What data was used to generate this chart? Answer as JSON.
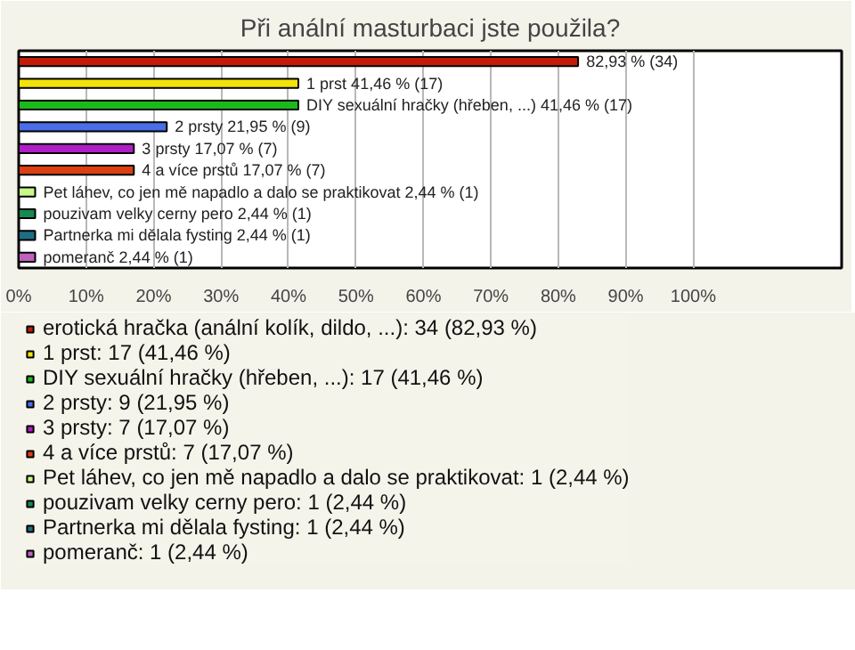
{
  "chart_data": {
    "type": "bar",
    "orientation": "horizontal",
    "title": "Při anální masturbaci jste použila?",
    "categories": [
      null,
      null,
      null,
      null,
      null,
      null,
      null,
      null,
      null,
      null
    ],
    "xlim": [
      0,
      122
    ],
    "xticks": [
      {
        "value": 0,
        "label": "0%"
      },
      {
        "value": 10,
        "label": "10%"
      },
      {
        "value": 20,
        "label": "20%"
      },
      {
        "value": 30,
        "label": "30%"
      },
      {
        "value": 40,
        "label": "40%"
      },
      {
        "value": 50,
        "label": "50%"
      },
      {
        "value": 60,
        "label": "60%"
      },
      {
        "value": 70,
        "label": "70%"
      },
      {
        "value": 80,
        "label": "80%"
      },
      {
        "value": 90,
        "label": "90%"
      },
      {
        "value": 100,
        "label": "100%"
      }
    ],
    "grid": "x",
    "legend": "bottom",
    "tick_labels": "x",
    "series": [
      {
        "name": "erotická hračka (anální kolík, dildo, ...): 34 (82,93 %)",
        "color": "#c41a0a",
        "values": [
          82.93,
          null,
          null,
          null,
          null,
          null,
          null,
          null,
          null,
          null
        ],
        "value_labels": [
          "82,93 % (34)",
          null,
          null,
          null,
          null,
          null,
          null,
          null,
          null,
          null
        ]
      },
      {
        "name": "1 prst: 17 (41,46 %)",
        "color": "#f2e20a",
        "values": [
          null,
          41.46,
          null,
          null,
          null,
          null,
          null,
          null,
          null,
          null
        ],
        "value_labels": [
          null,
          "1 prst 41,46 % (17)",
          null,
          null,
          null,
          null,
          null,
          null,
          null,
          null
        ]
      },
      {
        "name": "DIY sexuální hračky (hřeben, ...): 17 (41,46 %)",
        "color": "#1cb81c",
        "values": [
          null,
          null,
          41.46,
          null,
          null,
          null,
          null,
          null,
          null,
          null
        ],
        "value_labels": [
          null,
          null,
          "DIY sexuální hračky (hřeben, ...) 41,46 % (17)",
          null,
          null,
          null,
          null,
          null,
          null,
          null
        ]
      },
      {
        "name": "2 prsty: 9 (21,95 %)",
        "color": "#4a6ee8",
        "values": [
          null,
          null,
          null,
          21.95,
          null,
          null,
          null,
          null,
          null,
          null
        ],
        "value_labels": [
          null,
          null,
          null,
          "2 prsty 21,95 % (9)",
          null,
          null,
          null,
          null,
          null,
          null
        ]
      },
      {
        "name": "3 prsty: 7 (17,07 %)",
        "color": "#b01cc8",
        "values": [
          null,
          null,
          null,
          null,
          17.07,
          null,
          null,
          null,
          null,
          null
        ],
        "value_labels": [
          null,
          null,
          null,
          null,
          "3 prsty 17,07 % (7)",
          null,
          null,
          null,
          null,
          null
        ]
      },
      {
        "name": "4 a více prstů: 7 (17,07 %)",
        "color": "#dc4010",
        "values": [
          null,
          null,
          null,
          null,
          null,
          17.07,
          null,
          null,
          null,
          null
        ],
        "value_labels": [
          null,
          null,
          null,
          null,
          null,
          "4 a více prstů 17,07 % (7)",
          null,
          null,
          null,
          null
        ]
      },
      {
        "name": "Pet láhev, co jen mě napadlo a dalo se praktikovat: 1 (2,44 %)",
        "color": "#c8f88a",
        "values": [
          null,
          null,
          null,
          null,
          null,
          null,
          2.44,
          null,
          null,
          null
        ],
        "value_labels": [
          null,
          null,
          null,
          null,
          null,
          null,
          "Pet láhev, co jen mě napadlo a dalo se praktikovat 2,44 % (1)",
          null,
          null,
          null
        ]
      },
      {
        "name": "pouzivam velky cerny pero: 1 (2,44 %)",
        "color": "#148a50",
        "values": [
          null,
          null,
          null,
          null,
          null,
          null,
          null,
          2.44,
          null,
          null
        ],
        "value_labels": [
          null,
          null,
          null,
          null,
          null,
          null,
          null,
          "pouzivam velky cerny pero 2,44 % (1)",
          null,
          null
        ]
      },
      {
        "name": "Partnerka mi dělala fysting: 1 (2,44 %)",
        "color": "#1c6e84",
        "values": [
          null,
          null,
          null,
          null,
          null,
          null,
          null,
          null,
          2.44,
          null
        ],
        "value_labels": [
          null,
          null,
          null,
          null,
          null,
          null,
          null,
          null,
          "Partnerka mi dělala fysting 2,44 % (1)",
          null
        ]
      },
      {
        "name": "pomeranč: 1 (2,44 %)",
        "color": "#c060c0",
        "values": [
          null,
          null,
          null,
          null,
          null,
          null,
          null,
          null,
          null,
          2.44
        ],
        "value_labels": [
          null,
          null,
          null,
          null,
          null,
          null,
          null,
          null,
          null,
          "pomeranč 2,44 % (1)"
        ]
      }
    ]
  }
}
